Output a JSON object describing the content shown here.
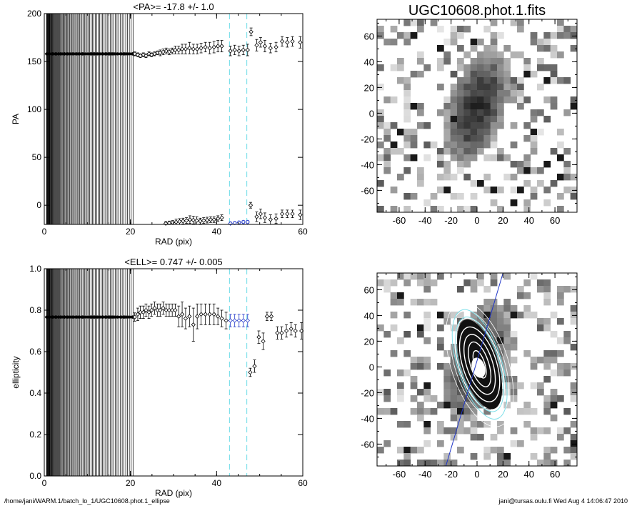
{
  "colors": {
    "ink": "#000000",
    "cyan": "#7fe0ea",
    "blue": "#1f35c8",
    "contour": "#ffffff"
  },
  "footer": {
    "left": "/home/jani/WARM.1/batch_lo_1/UGC10608.phot.1_ellipse",
    "right": "jani@tursas.oulu.fi  Wed Aug  4 14:06:47 2010"
  },
  "chart_data": [
    {
      "type": "scatter",
      "title": "<PA>= -17.8 +/-   1.0",
      "xlabel": "RAD (pix)",
      "ylabel": "PA",
      "xlim": [
        0,
        60
      ],
      "ylim": [
        -20,
        200
      ],
      "xticks": [
        "0",
        "20",
        "40",
        "60"
      ],
      "yticks": [
        "0",
        "50",
        "100",
        "150",
        "200"
      ],
      "vlines_cyan": [
        43.0,
        47.0
      ],
      "core_band": {
        "x_from": 0.5,
        "x_to": 21.0,
        "value": 158
      },
      "series": [
        {
          "points": [
            [
              21,
              158
            ],
            [
              21.7,
              157
            ],
            [
              22.3,
              156
            ],
            [
              23,
              157
            ],
            [
              23.6,
              156
            ],
            [
              24.3,
              158
            ],
            [
              24.9,
              157
            ],
            [
              25.6,
              158
            ],
            [
              26.3,
              159
            ],
            [
              26.9,
              159
            ],
            [
              27.6,
              160
            ],
            [
              28.3,
              161
            ],
            [
              29,
              160
            ],
            [
              29.7,
              161
            ],
            [
              30.4,
              162
            ],
            [
              31.2,
              162
            ],
            [
              32,
              163
            ],
            [
              32.8,
              163
            ],
            [
              33.7,
              164
            ],
            [
              34.6,
              163
            ],
            [
              35.5,
              163
            ],
            [
              36.4,
              164
            ],
            [
              37.4,
              165
            ],
            [
              38.4,
              164
            ],
            [
              39.4,
              165
            ],
            [
              40.3,
              166
            ],
            [
              41.2,
              166
            ],
            [
              43.2,
              161
            ],
            [
              44.2,
              162
            ],
            [
              45.2,
              161
            ],
            [
              46.2,
              162
            ],
            [
              47.2,
              162
            ],
            [
              48,
              181
            ],
            [
              49.3,
              167
            ],
            [
              50.2,
              170
            ],
            [
              51.2,
              166
            ],
            [
              52.5,
              164
            ],
            [
              53.8,
              165
            ],
            [
              55.2,
              171
            ],
            [
              56.4,
              170
            ],
            [
              57.6,
              171
            ],
            [
              59.4,
              170
            ]
          ],
          "err": [
            2,
            2,
            2,
            2,
            2,
            2,
            2,
            2,
            2,
            3,
            3,
            3,
            3,
            3,
            4,
            4,
            5,
            5,
            6,
            5,
            5,
            5,
            5,
            6,
            6,
            6,
            6,
            5,
            5,
            5,
            5,
            6,
            4,
            6,
            5,
            6,
            5,
            5,
            5,
            5,
            5,
            6
          ]
        },
        {
          "points": [
            [
              28.2,
              -19
            ],
            [
              29,
              -18.5
            ],
            [
              29.8,
              -18
            ],
            [
              30.6,
              -17.5
            ],
            [
              31.4,
              -17
            ],
            [
              32.2,
              -16.5
            ],
            [
              33,
              -16
            ],
            [
              33.8,
              -15
            ],
            [
              34.6,
              -15.5
            ],
            [
              35.4,
              -16
            ],
            [
              36.2,
              -16.5
            ],
            [
              37,
              -16
            ],
            [
              37.8,
              -15.5
            ],
            [
              38.6,
              -15
            ],
            [
              39.4,
              -15
            ],
            [
              40.3,
              -14
            ],
            [
              41.2,
              -13
            ],
            [
              47.9,
              0
            ],
            [
              49.3,
              -12
            ],
            [
              50.2,
              -9
            ],
            [
              51.2,
              -13
            ],
            [
              52.5,
              -15
            ],
            [
              53.8,
              -14
            ],
            [
              55.2,
              -9
            ],
            [
              56.4,
              -9
            ],
            [
              57.6,
              -9
            ],
            [
              59.4,
              -10
            ]
          ],
          "err": [
            2,
            2,
            2,
            3,
            3,
            3,
            3,
            4,
            4,
            4,
            3,
            3,
            3,
            3,
            3,
            3,
            3,
            3,
            5,
            5,
            5,
            5,
            5,
            4,
            4,
            4,
            5
          ]
        },
        {
          "name": "blue",
          "points": [
            [
              43.2,
              -19
            ],
            [
              44.2,
              -18.5
            ],
            [
              45.2,
              -18
            ],
            [
              46.2,
              -17.5
            ],
            [
              47.2,
              -17.5
            ]
          ],
          "err": [
            1.5,
            1.5,
            1.5,
            1.5,
            1.5
          ]
        }
      ]
    },
    {
      "type": "scatter",
      "title": "<ELL>= 0.747 +/-  0.005",
      "xlabel": "RAD (pix)",
      "ylabel": "ellipticity",
      "xlim": [
        0,
        60
      ],
      "ylim": [
        0,
        1
      ],
      "xticks": [
        "0",
        "20",
        "40",
        "60"
      ],
      "yticks": [
        "0.0",
        "0.2",
        "0.4",
        "0.6",
        "0.8",
        "1.0"
      ],
      "vlines_cyan": [
        43.0,
        47.0
      ],
      "core_band": {
        "x_from": 0.5,
        "x_to": 21.0,
        "value": 0.767
      },
      "series": [
        {
          "points": [
            [
              21,
              0.767
            ],
            [
              21.7,
              0.78
            ],
            [
              22.3,
              0.79
            ],
            [
              23,
              0.79
            ],
            [
              23.6,
              0.8
            ],
            [
              24.3,
              0.79
            ],
            [
              24.9,
              0.8
            ],
            [
              25.6,
              0.81
            ],
            [
              26.3,
              0.8
            ],
            [
              26.9,
              0.8
            ],
            [
              27.6,
              0.81
            ],
            [
              28.3,
              0.8
            ],
            [
              29,
              0.8
            ],
            [
              29.7,
              0.8
            ],
            [
              30.4,
              0.8
            ],
            [
              31.2,
              0.77
            ],
            [
              32,
              0.78
            ],
            [
              32.8,
              0.76
            ],
            [
              33.7,
              0.77
            ],
            [
              34.6,
              0.73
            ],
            [
              35.5,
              0.77
            ],
            [
              36.4,
              0.78
            ],
            [
              37.4,
              0.78
            ],
            [
              38.4,
              0.78
            ],
            [
              39.4,
              0.78
            ],
            [
              40.3,
              0.77
            ],
            [
              41.2,
              0.76
            ],
            [
              42.2,
              0.75
            ],
            [
              47.8,
              0.5
            ],
            [
              48.8,
              0.53
            ],
            [
              49.8,
              0.67
            ],
            [
              50.8,
              0.65
            ],
            [
              51.7,
              0.77
            ],
            [
              52.7,
              0.77
            ],
            [
              54.1,
              0.69
            ],
            [
              55.1,
              0.69
            ],
            [
              56.2,
              0.7
            ],
            [
              57.3,
              0.71
            ],
            [
              58.3,
              0.7
            ],
            [
              59.7,
              0.7
            ]
          ],
          "err": [
            0.02,
            0.03,
            0.03,
            0.03,
            0.03,
            0.03,
            0.03,
            0.03,
            0.03,
            0.03,
            0.03,
            0.03,
            0.03,
            0.03,
            0.03,
            0.05,
            0.06,
            0.05,
            0.05,
            0.08,
            0.06,
            0.05,
            0.05,
            0.05,
            0.05,
            0.04,
            0.04,
            0.04,
            0.02,
            0.03,
            0.03,
            0.04,
            0.02,
            0.02,
            0.03,
            0.03,
            0.03,
            0.03,
            0.03,
            0.04
          ]
        },
        {
          "name": "blue",
          "points": [
            [
              43.2,
              0.75
            ],
            [
              44.2,
              0.75
            ],
            [
              45.2,
              0.75
            ],
            [
              46.2,
              0.75
            ],
            [
              47.2,
              0.75
            ]
          ],
          "err": [
            0.03,
            0.03,
            0.03,
            0.03,
            0.03
          ]
        }
      ]
    },
    {
      "type": "heatmap",
      "title": "UGC10608.phot.1.fits",
      "xlim": [
        -77,
        77
      ],
      "ylim": [
        -77,
        73
      ],
      "xticks": [
        "-60",
        "-40",
        "-20",
        "0",
        "20",
        "40",
        "60"
      ],
      "yticks": [
        "-60",
        "-40",
        "-20",
        "0",
        "20",
        "40",
        "60"
      ],
      "galaxy": {
        "cx": 0,
        "cy": 5,
        "angle_deg": -18,
        "rx": 22,
        "ry": 48
      }
    },
    {
      "type": "heatmap",
      "xlim": [
        -77,
        77
      ],
      "ylim": [
        -77,
        73
      ],
      "xticks": [
        "-60",
        "-40",
        "-20",
        "0",
        "20",
        "40",
        "60"
      ],
      "yticks": [
        "-60",
        "-40",
        "-20",
        "0",
        "20",
        "40",
        "60"
      ],
      "contour_center": [
        2,
        2
      ],
      "pa_line": [
        [
          -24,
          -77
        ],
        [
          20,
          73
        ]
      ]
    }
  ]
}
